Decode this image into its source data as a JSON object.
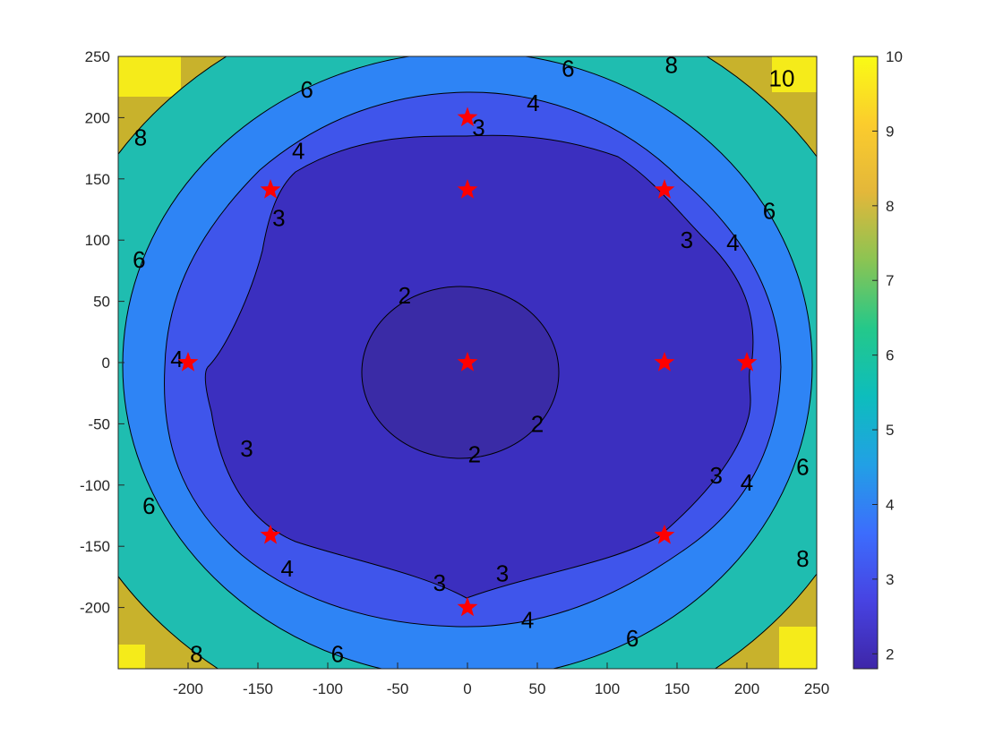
{
  "chart_data": {
    "type": "contour",
    "title": "",
    "xlabel": "",
    "ylabel": "",
    "xlim": [
      -250,
      250
    ],
    "ylim": [
      -250,
      250
    ],
    "x_ticks": [
      -200,
      -150,
      -100,
      -50,
      0,
      50,
      100,
      150,
      200,
      250
    ],
    "y_ticks": [
      250,
      200,
      150,
      100,
      50,
      0,
      -50,
      -100,
      -150,
      -200
    ],
    "grid": false,
    "contour_levels": [
      2,
      3,
      4,
      6,
      8,
      10
    ],
    "contour_labels": [
      {
        "text": "2",
        "x": -45,
        "y": 55
      },
      {
        "text": "2",
        "x": 5,
        "y": -75
      },
      {
        "text": "2",
        "x": 50,
        "y": -50
      },
      {
        "text": "3",
        "x": 8,
        "y": 192
      },
      {
        "text": "3",
        "x": -135,
        "y": 118
      },
      {
        "text": "3",
        "x": 157,
        "y": 100
      },
      {
        "text": "3",
        "x": -158,
        "y": -70
      },
      {
        "text": "3",
        "x": 178,
        "y": -92
      },
      {
        "text": "3",
        "x": -20,
        "y": -180
      },
      {
        "text": "3",
        "x": 25,
        "y": -172
      },
      {
        "text": "4",
        "x": 47,
        "y": 212
      },
      {
        "text": "4",
        "x": -121,
        "y": 173
      },
      {
        "text": "4",
        "x": 190,
        "y": 98
      },
      {
        "text": "4",
        "x": -208,
        "y": 3
      },
      {
        "text": "4",
        "x": 200,
        "y": -98
      },
      {
        "text": "4",
        "x": -129,
        "y": -168
      },
      {
        "text": "4",
        "x": 43,
        "y": -210
      },
      {
        "text": "6",
        "x": -115,
        "y": 223
      },
      {
        "text": "6",
        "x": 72,
        "y": 240
      },
      {
        "text": "6",
        "x": 216,
        "y": 124
      },
      {
        "text": "6",
        "x": -235,
        "y": 84
      },
      {
        "text": "6",
        "x": 240,
        "y": -85
      },
      {
        "text": "6",
        "x": -228,
        "y": -117
      },
      {
        "text": "6",
        "x": 118,
        "y": -225
      },
      {
        "text": "6",
        "x": -93,
        "y": -238
      },
      {
        "text": "8",
        "x": -234,
        "y": 184
      },
      {
        "text": "8",
        "x": 146,
        "y": 243
      },
      {
        "text": "8",
        "x": 240,
        "y": -160
      },
      {
        "text": "8",
        "x": -194,
        "y": -238
      },
      {
        "text": "10",
        "x": 225,
        "y": 232
      }
    ],
    "markers": {
      "symbol": "star",
      "color": "#ff0000",
      "points": [
        {
          "x": 0,
          "y": 0
        },
        {
          "x": 0,
          "y": 200
        },
        {
          "x": 0,
          "y": 141
        },
        {
          "x": 141,
          "y": 141
        },
        {
          "x": -141,
          "y": 141
        },
        {
          "x": -200,
          "y": 0
        },
        {
          "x": 141,
          "y": 0
        },
        {
          "x": 200,
          "y": 0
        },
        {
          "x": -141,
          "y": -141
        },
        {
          "x": 141,
          "y": -141
        },
        {
          "x": 0,
          "y": -200
        }
      ]
    },
    "colorbar": {
      "range": [
        1.8,
        10
      ],
      "ticks": [
        10,
        9,
        8,
        7,
        6,
        5,
        4,
        3,
        2
      ],
      "colormap": "parula",
      "stops": [
        "#3e26a8",
        "#4743e2",
        "#3c6dfd",
        "#22a0e5",
        "#0dbdbd",
        "#24c88a",
        "#8bc453",
        "#e3b73a",
        "#fbcc2d",
        "#f9fb15"
      ]
    },
    "fill_colors": {
      "region_lt2": "#3a2ba6",
      "region_2_3": "#3b2fbf",
      "region_3_4": "#3f55eb",
      "region_4_6": "#2e84f5",
      "region_6_8": "#1fbdb0",
      "region_8_10": "#c8b22c",
      "region_gt10": "#f5eb1a"
    }
  }
}
